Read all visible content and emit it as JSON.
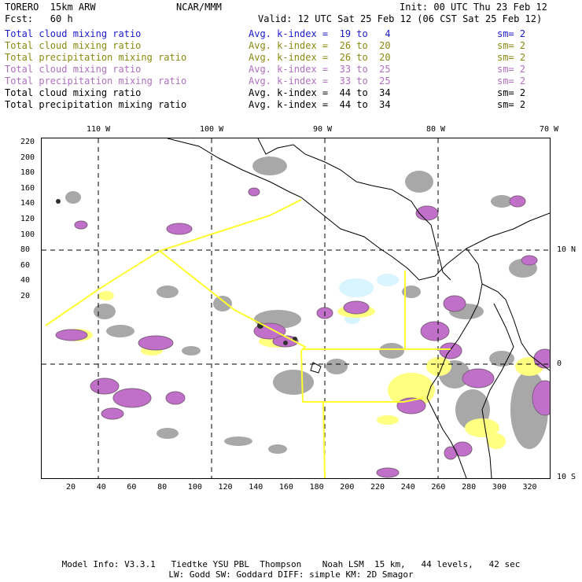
{
  "header": {
    "model": "TORERO  15km ARW",
    "org": "NCAR/MMM",
    "init": "Init: 00 UTC Thu 23 Feb 12",
    "fcst": "Fcst:   60 h",
    "valid": "Valid: 12 UTC Sat 25 Feb 12 (06 CST Sat 25 Feb 12)"
  },
  "legend": [
    {
      "label": "Total cloud mixing ratio",
      "avg": "Avg. k-index =  19 to   4",
      "sm": "sm= 2",
      "color": "#1a1acc"
    },
    {
      "label": "Total cloud mixing ratio",
      "avg": "Avg. k-index =  26 to  20",
      "sm": "sm= 2",
      "color": "#8a8a10"
    },
    {
      "label": "Total precipitation mixing ratio",
      "avg": "Avg. k-index =  26 to  20",
      "sm": "sm= 2",
      "color": "#8a8a10"
    },
    {
      "label": "Total cloud mixing ratio",
      "avg": "Avg. k-index =  33 to  25",
      "sm": "sm= 2",
      "color": "#b070c0"
    },
    {
      "label": "Total precipitation mixing ratio",
      "avg": "Avg. k-index =  33 to  25",
      "sm": "sm= 2",
      "color": "#b070c0"
    },
    {
      "label": "Total cloud mixing ratio",
      "avg": "Avg. k-index =  44 to  34",
      "sm": "sm= 2",
      "color": "#000000"
    },
    {
      "label": "Total precipitation mixing ratio",
      "avg": "Avg. k-index =  44 to  34",
      "sm": "sm= 2",
      "color": "#000000"
    }
  ],
  "map": {
    "top_lon_labels": [
      "110 W",
      "100 W",
      "90 W",
      "80 W",
      "70 W"
    ],
    "right_lat_labels": [
      "10 N",
      "0",
      "10 S"
    ],
    "x_ticks": [
      "20",
      "40",
      "60",
      "80",
      "100",
      "120",
      "140",
      "160",
      "180",
      "200",
      "220",
      "240",
      "260",
      "280",
      "300",
      "320"
    ],
    "y_ticks": [
      "220",
      "200",
      "180",
      "160",
      "140",
      "120",
      "100",
      "80",
      "60",
      "40",
      "20"
    ],
    "colors": {
      "yellow_field": "#ffff80",
      "purple_field": "#c070c8",
      "gray_field": "#a8a8a8",
      "cyan_field": "#d8f4ff",
      "domain_line": "#ffff30",
      "coast": "#000000"
    }
  },
  "footer": {
    "line1": "Model Info: V3.3.1   Tiedtke YSU PBL  Thompson    Noah LSM  15 km,   44 levels,   42 sec",
    "line2": "LW: Godd SW: Goddard DIFF: simple KM: 2D Smagor"
  }
}
